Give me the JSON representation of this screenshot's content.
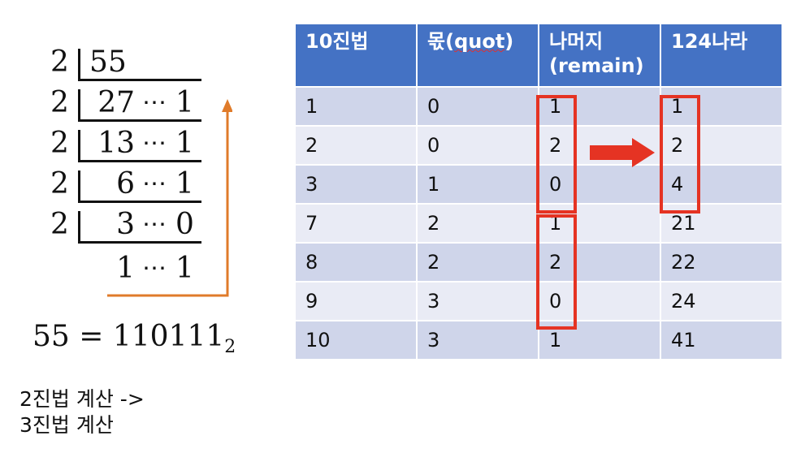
{
  "division": {
    "rows": [
      {
        "divisor": "2",
        "dividend": "55",
        "remainder": ""
      },
      {
        "divisor": "2",
        "dividend": "27",
        "remainder": "1"
      },
      {
        "divisor": "2",
        "dividend": "13",
        "remainder": "1"
      },
      {
        "divisor": "2",
        "dividend": "6",
        "remainder": "1"
      },
      {
        "divisor": "2",
        "dividend": "3",
        "remainder": "0"
      },
      {
        "divisor": "",
        "dividend": "1",
        "remainder": "1"
      }
    ],
    "dots": "⋯",
    "result_lhs": "55 = 110111",
    "result_base": "2"
  },
  "caption": {
    "line1": "2진법 계산 ->",
    "line2": "3진법 계산"
  },
  "table": {
    "headers": {
      "col1": "10진법",
      "col2_prefix": "몫(",
      "col2_word": "quot",
      "col2_suffix": ")",
      "col3_line1": "나머지",
      "col3_line2": "(remain)",
      "col4": "124나라"
    },
    "rows": [
      [
        "1",
        "0",
        "1",
        "1"
      ],
      [
        "2",
        "0",
        "2",
        "2"
      ],
      [
        "3",
        "1",
        "0",
        "4"
      ],
      [
        "7",
        "2",
        "1",
        "21"
      ],
      [
        "8",
        "2",
        "2",
        "22"
      ],
      [
        "9",
        "3",
        "0",
        "24"
      ],
      [
        "10",
        "3",
        "1",
        "41"
      ]
    ]
  },
  "colors": {
    "header_bg": "#4472c4",
    "row_dark": "#cfd5ea",
    "row_light": "#e9ebf5",
    "highlight_red": "#e53323",
    "orange_arrow": "#e07b2a"
  }
}
